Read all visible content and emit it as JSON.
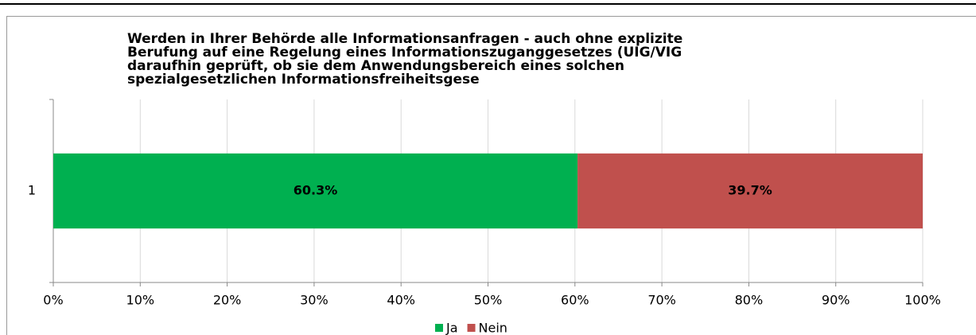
{
  "chart_data": {
    "type": "stacked_bar_horizontal",
    "title": [
      "Werden in Ihrer Behörde alle Informationsanfragen - auch ohne explizite",
      "Berufung auf eine Regelung eines Informationszuganggesetzes (UIG/VIG",
      "daraufhin geprüft, ob sie dem Anwendungsbereich eines solchen",
      "spezialgesetzlichen Informationsfreiheitsgese"
    ],
    "categories": [
      "1"
    ],
    "series": [
      {
        "name": "Ja",
        "color": "#00b050",
        "values": [
          60.3
        ],
        "value_labels": [
          "60.3%"
        ]
      },
      {
        "name": "Nein",
        "color": "#c0504d",
        "values": [
          39.7
        ],
        "value_labels": [
          "39.7%"
        ]
      }
    ],
    "xlim": [
      0,
      100
    ],
    "xticks": [
      {
        "value": 0,
        "label": "0%"
      },
      {
        "value": 10,
        "label": "10%"
      },
      {
        "value": 20,
        "label": "20%"
      },
      {
        "value": 30,
        "label": "30%"
      },
      {
        "value": 40,
        "label": "40%"
      },
      {
        "value": 50,
        "label": "50%"
      },
      {
        "value": 60,
        "label": "60%"
      },
      {
        "value": 70,
        "label": "70%"
      },
      {
        "value": 80,
        "label": "80%"
      },
      {
        "value": 90,
        "label": "90%"
      },
      {
        "value": 100,
        "label": "100%"
      }
    ],
    "grid": true,
    "legend": "bottom"
  }
}
